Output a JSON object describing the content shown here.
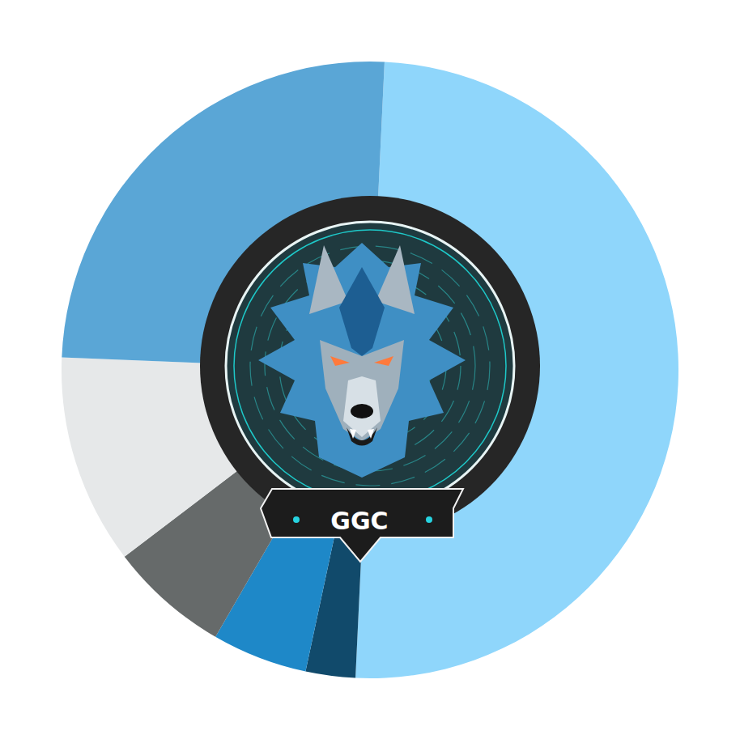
{
  "chart_data": {
    "type": "donut",
    "values": [
      50,
      2.6,
      5,
      6.3,
      11,
      25.1
    ],
    "colors": [
      "#8fd6fb",
      "#114a6b",
      "#1e88c8",
      "#666a6a",
      "#e6e8e9",
      "#5aa6d6"
    ],
    "annotation": "GGC"
  }
}
